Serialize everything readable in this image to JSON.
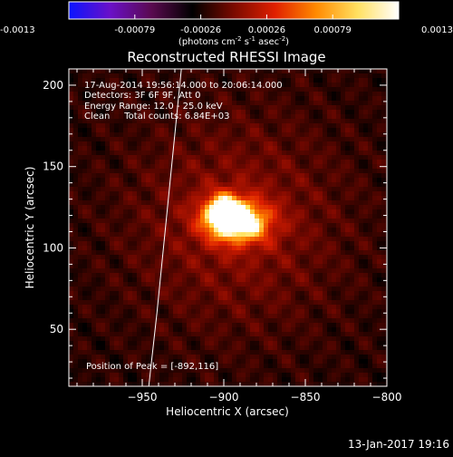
{
  "colorbar": {
    "ticks": [
      "-0.0013",
      "-0.00079",
      "-0.00026",
      "0.00026",
      "0.00079",
      "0.0013"
    ],
    "units_main": "(photons cm",
    "units_sup1": "-2",
    "units_mid": " s",
    "units_sup2": "-1",
    "units_end": " asec",
    "units_sup3": "-2",
    "units_close": ")",
    "colors": [
      "#0a14ff",
      "#6a10c8",
      "#5a0a50",
      "#000000",
      "#7a0a00",
      "#e02000",
      "#ff8a00",
      "#ffe060",
      "#ffffff"
    ]
  },
  "chart_data": {
    "type": "heatmap",
    "title": "Reconstructed RHESSI Image",
    "xlabel": "Heliocentric X (arcsec)",
    "ylabel": "Heliocentric Y (arcsec)",
    "xlim": [
      -995,
      -800
    ],
    "ylim": [
      15,
      210
    ],
    "xticks": [
      -950,
      -900,
      -850,
      -800
    ],
    "xtick_labels": [
      "−950",
      "−900",
      "−850",
      "−800"
    ],
    "yticks": [
      50,
      100,
      150,
      200
    ],
    "ytick_labels": [
      "50",
      "100",
      "150",
      "200"
    ],
    "peak": [
      -892,
      116
    ],
    "limb_curve": [
      [
        -946,
        15
      ],
      [
        -941,
        60
      ],
      [
        -936,
        110
      ],
      [
        -931,
        160
      ],
      [
        -926,
        210
      ]
    ],
    "info_lines": [
      "17-Aug-2014 19:56:14.000 to 20:06:14.000",
      "Detectors: 3F 6F 9F, Att 0",
      "Energy Range: 12.0 - 25.0 keV",
      "Clean     Total counts: 6.84E+03"
    ],
    "peak_label": "Position of Peak = [-892,116]"
  },
  "footer": {
    "timestamp": "13-Jan-2017 19:16"
  }
}
